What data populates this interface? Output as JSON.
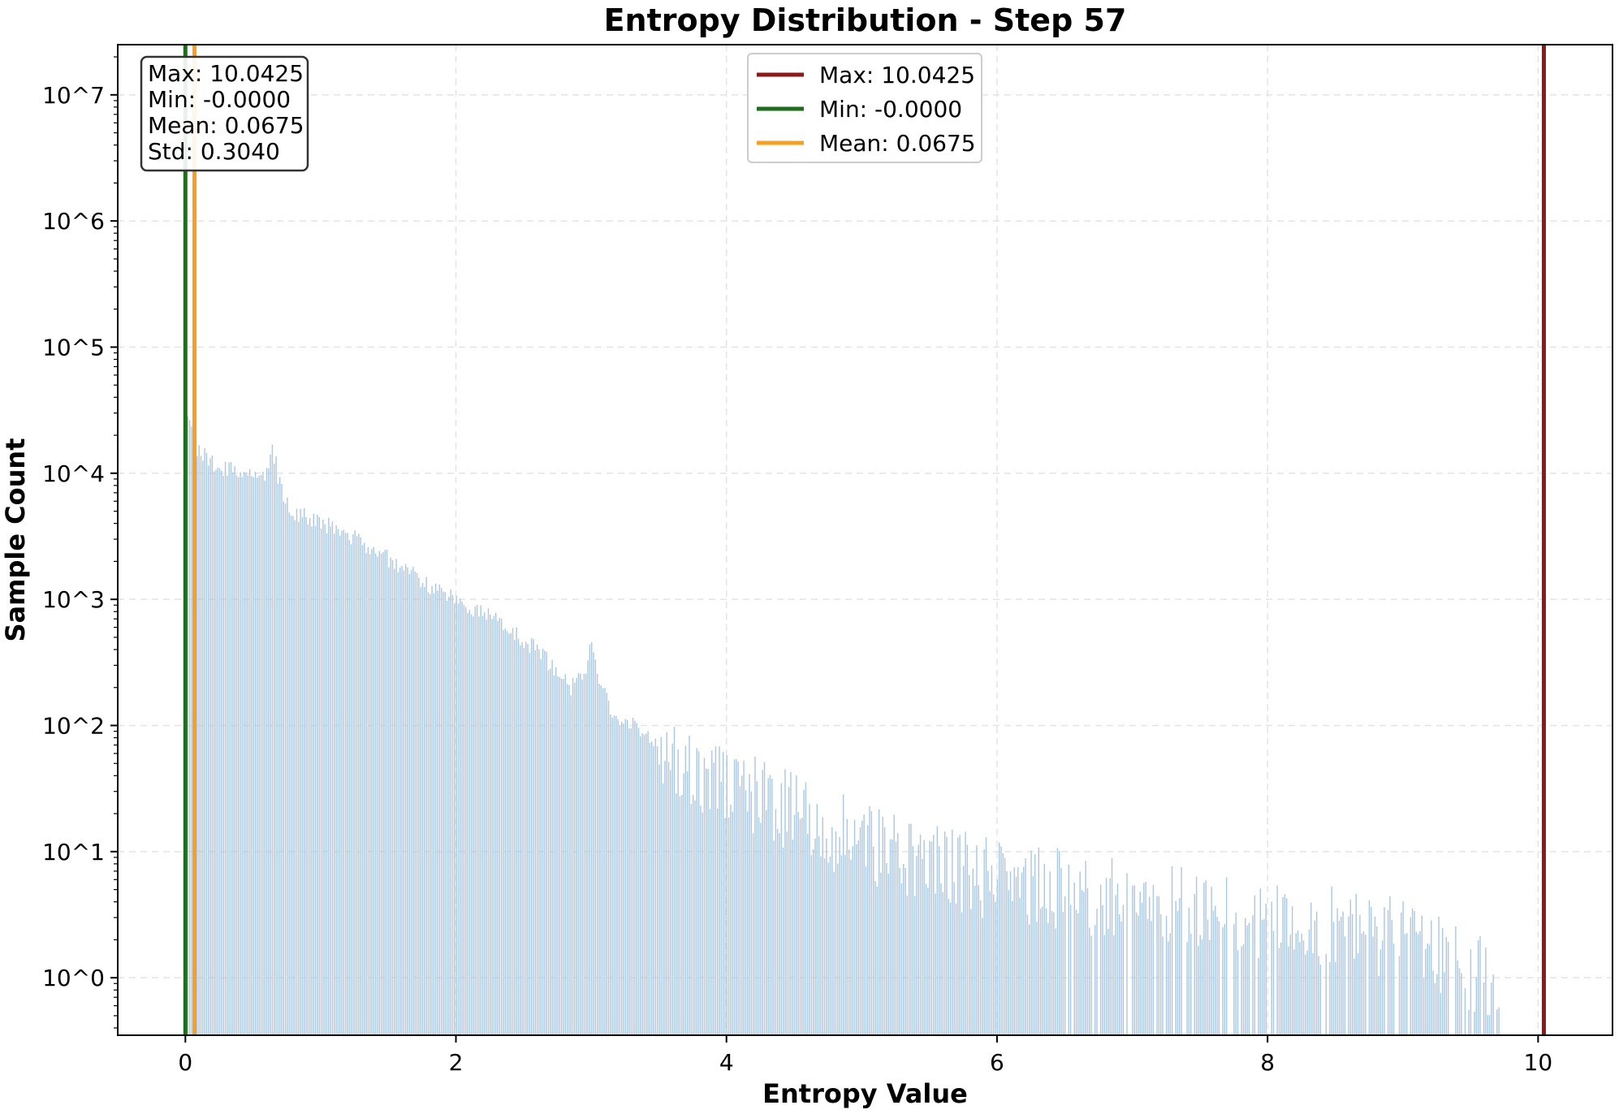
{
  "chart_data": {
    "type": "bar",
    "title": "Entropy Distribution - Step 57",
    "xlabel": "Entropy Value",
    "ylabel": "Sample Count",
    "yscale": "log",
    "xlim": [
      -0.5,
      10.55
    ],
    "ylim": [
      0.35,
      25000000
    ],
    "xticks": [
      0,
      2,
      4,
      6,
      8,
      10
    ],
    "xtick_labels": [
      "0",
      "2",
      "4",
      "6",
      "8",
      "10"
    ],
    "yticks": [
      1,
      10,
      100,
      1000,
      10000,
      100000,
      1000000,
      10000000
    ],
    "ytick_labels": [
      "10^0",
      "10^1",
      "10^2",
      "10^3",
      "10^4",
      "10^5",
      "10^6",
      "10^7"
    ],
    "grid": true,
    "bar_color": "#a9c6e3",
    "histogram_profile": {
      "x": [
        0.0,
        0.02,
        0.05,
        0.1,
        0.2,
        0.4,
        0.6,
        0.65,
        0.7,
        0.8,
        1.0,
        1.2,
        1.5,
        1.8,
        2.0,
        2.3,
        2.6,
        2.85,
        2.95,
        3.0,
        3.05,
        3.15,
        3.3,
        3.5,
        3.8,
        4.0,
        4.5,
        5.0,
        5.5,
        6.0,
        6.5,
        7.0,
        7.5,
        8.0,
        8.5,
        9.0,
        9.3,
        9.6,
        9.7
      ],
      "counts": [
        45000,
        30000,
        20000,
        15000,
        12000,
        10000,
        10000,
        16000,
        8000,
        5000,
        4000,
        3300,
        2100,
        1300,
        1000,
        700,
        400,
        200,
        260,
        430,
        260,
        130,
        100,
        70,
        45,
        35,
        20,
        12,
        8,
        6,
        5,
        4,
        3.5,
        3,
        2.5,
        2,
        1.5,
        1,
        0.6
      ]
    },
    "vlines": [
      {
        "name": "Max: 10.0425",
        "x": 10.0425,
        "color": "#8b1a1a"
      },
      {
        "name": "Min: -0.0000",
        "x": 0.0,
        "color": "#1e6e1e"
      },
      {
        "name": "Mean: 0.0675",
        "x": 0.0675,
        "color": "#f5a023"
      }
    ],
    "legend_position": "upper-center",
    "stats_box": {
      "lines": [
        "Max: 10.0425",
        "Min: -0.0000",
        "Mean: 0.0675",
        "Std: 0.3040"
      ],
      "position": "upper-left"
    }
  }
}
